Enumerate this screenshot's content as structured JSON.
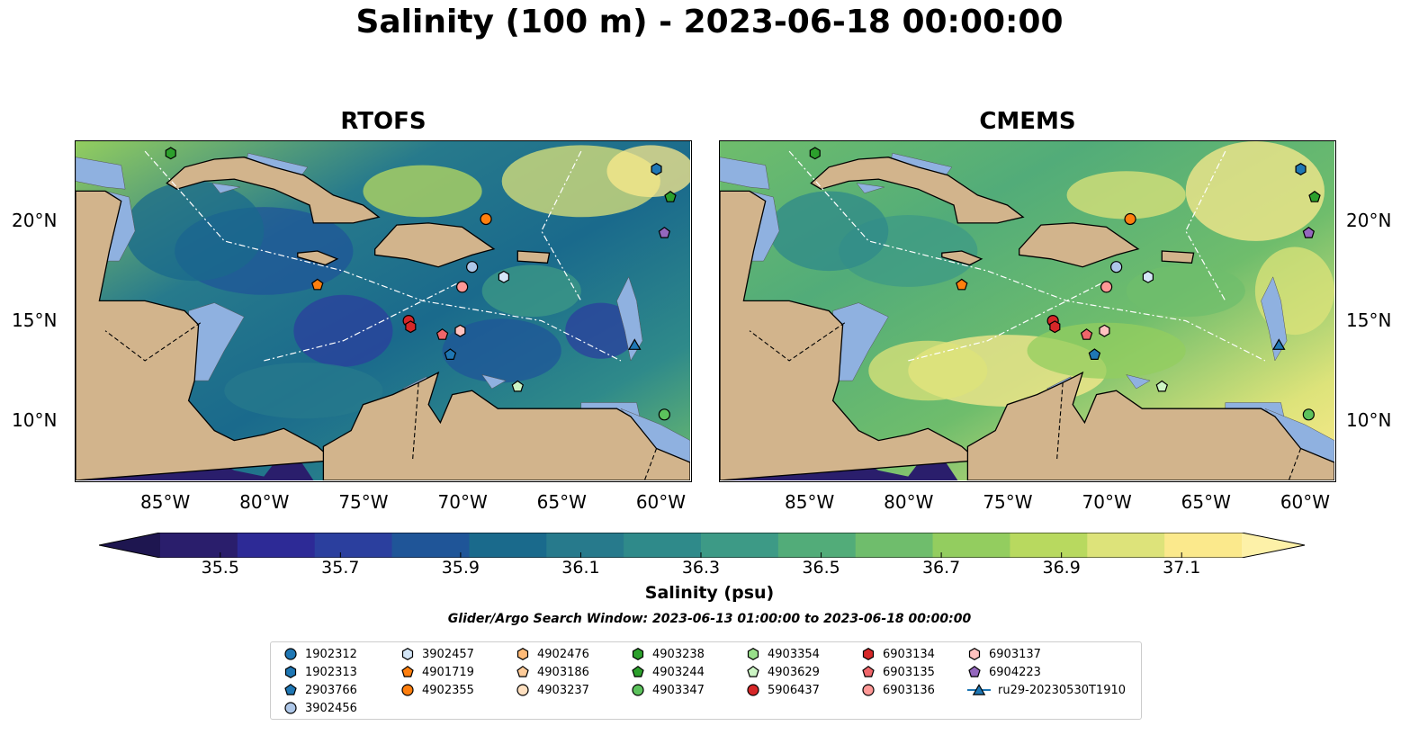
{
  "title": "Salinity (100 m) - 2023-06-18 00:00:00",
  "panels": [
    {
      "title": "RTOFS"
    },
    {
      "title": "CMEMS"
    }
  ],
  "axes": {
    "lon_labels": [
      "85°W",
      "80°W",
      "75°W",
      "70°W",
      "65°W",
      "60°W"
    ],
    "lon_values": [
      -85,
      -80,
      -75,
      -70,
      -65,
      -60
    ],
    "lat_labels": [
      "20°N",
      "15°N",
      "10°N"
    ],
    "lat_values": [
      20,
      15,
      10
    ],
    "lon_range": [
      -89.5,
      -58.5
    ],
    "lat_range": [
      7,
      24
    ]
  },
  "colorbar": {
    "label": "Salinity (psu)",
    "ticks": [
      "35.5",
      "35.7",
      "35.9",
      "36.1",
      "36.3",
      "36.5",
      "36.7",
      "36.9",
      "37.1"
    ],
    "range": [
      35.4,
      37.2
    ],
    "extend": "both",
    "colors": [
      "#2a1e6c",
      "#2d2a96",
      "#2b3f9e",
      "#1f5598",
      "#1a6a8c",
      "#277a8c",
      "#2f8a8a",
      "#3d9a86",
      "#52ac79",
      "#6fbd6c",
      "#93cd5f",
      "#b8d95f",
      "#dde37a",
      "#fbe98c"
    ]
  },
  "search_window": "Glider/Argo Search Window: 2023-06-13 01:00:00 to 2023-06-18 00:00:00",
  "colors": {
    "land": "#d2b48c",
    "shelf": "#8fb1e0",
    "deep_pacific": "#2a1e6c"
  },
  "legend": [
    {
      "label": "1902312",
      "marker": "circle",
      "color": "#1f77b4"
    },
    {
      "label": "1902313",
      "marker": "hexagon",
      "color": "#1f77b4"
    },
    {
      "label": "2903766",
      "marker": "pentagon",
      "color": "#1f77b4"
    },
    {
      "label": "3902456",
      "marker": "circle",
      "color": "#aec7e8"
    },
    {
      "label": "3902457",
      "marker": "hexagon",
      "color": "#d4e6f7"
    },
    {
      "label": "4901719",
      "marker": "pentagon",
      "color": "#ff7f0e"
    },
    {
      "label": "4902355",
      "marker": "circle",
      "color": "#ff7f0e"
    },
    {
      "label": "4902476",
      "marker": "hexagon",
      "color": "#ffbb78"
    },
    {
      "label": "4903186",
      "marker": "pentagon",
      "color": "#ffcc99"
    },
    {
      "label": "4903237",
      "marker": "circle",
      "color": "#ffe0c0"
    },
    {
      "label": "4903238",
      "marker": "hexagon",
      "color": "#2ca02c"
    },
    {
      "label": "4903244",
      "marker": "pentagon",
      "color": "#2ca02c"
    },
    {
      "label": "4903347",
      "marker": "circle",
      "color": "#5cc25c"
    },
    {
      "label": "4903354",
      "marker": "hexagon",
      "color": "#98df8a"
    },
    {
      "label": "4903629",
      "marker": "pentagon",
      "color": "#ccf5c4"
    },
    {
      "label": "5906437",
      "marker": "circle",
      "color": "#d62728"
    },
    {
      "label": "6903134",
      "marker": "hexagon",
      "color": "#d62728"
    },
    {
      "label": "6903135",
      "marker": "pentagon",
      "color": "#f0666a"
    },
    {
      "label": "6903136",
      "marker": "circle",
      "color": "#ff9896"
    },
    {
      "label": "6903137",
      "marker": "hexagon",
      "color": "#ffc2c0"
    },
    {
      "label": "6904223",
      "marker": "pentagon",
      "color": "#9467bd"
    },
    {
      "label": "ru29-20230530T1910",
      "marker": "triangle-line",
      "color": "#1f77b4"
    }
  ],
  "floats": [
    {
      "id": "1902313",
      "lon": -60.2,
      "lat": 22.6
    },
    {
      "id": "4903244",
      "lon": -59.5,
      "lat": 21.2
    },
    {
      "id": "6904223",
      "lon": -59.8,
      "lat": 19.4
    },
    {
      "id": "4903238",
      "lon": -84.7,
      "lat": 23.4
    },
    {
      "id": "4902355",
      "lon": -68.8,
      "lat": 20.1
    },
    {
      "id": "3902456",
      "lon": -69.5,
      "lat": 17.7
    },
    {
      "id": "3902457",
      "lon": -67.9,
      "lat": 17.2
    },
    {
      "id": "6903136",
      "lon": -70.0,
      "lat": 16.7
    },
    {
      "id": "4901719",
      "lon": -77.3,
      "lat": 16.8
    },
    {
      "id": "5906437",
      "lon": -72.7,
      "lat": 15.0
    },
    {
      "id": "6903134",
      "lon": -72.6,
      "lat": 14.7
    },
    {
      "id": "6903135",
      "lon": -71.0,
      "lat": 14.3
    },
    {
      "id": "6903137",
      "lon": -70.1,
      "lat": 14.5
    },
    {
      "id": "2903766",
      "lon": -70.6,
      "lat": 13.3
    },
    {
      "id": "4903629",
      "lon": -67.2,
      "lat": 11.7
    },
    {
      "id": "4903347",
      "lon": -59.8,
      "lat": 10.3
    },
    {
      "id": "ru29-20230530T1910",
      "lon": -61.3,
      "lat": 13.8
    }
  ]
}
